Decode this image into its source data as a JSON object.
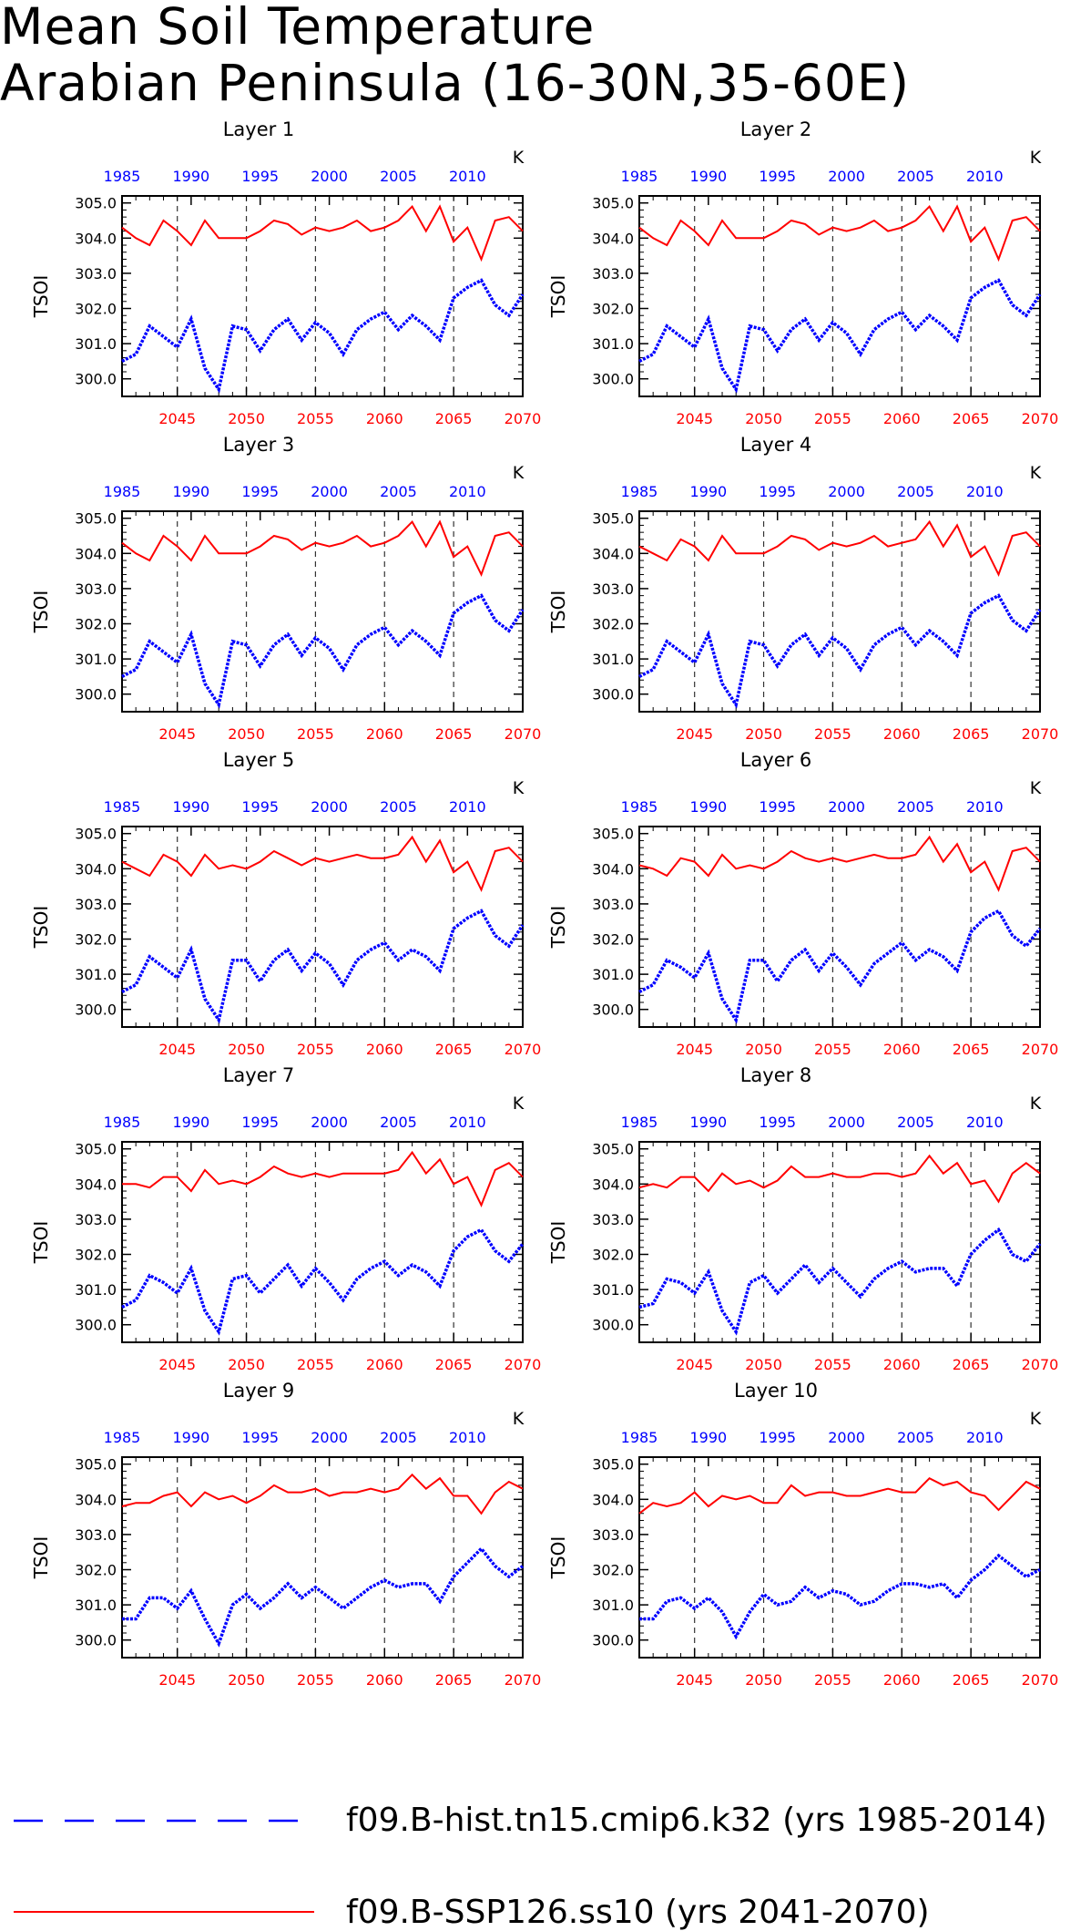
{
  "title_line1": "Mean Soil Temperature",
  "title_line2": "Arabian Peninsula (16-30N,35-60E)",
  "colors": {
    "hist": "#0000ff",
    "ssp": "#ff0000",
    "axis": "#000000"
  },
  "legend": {
    "hist_label": "f09.B-hist.tn15.cmip6.k32 (yrs 1985-2014)",
    "ssp_label": "f09.B-SSP126.ss10 (yrs 2041-2070)"
  },
  "chart_data": {
    "type": "line",
    "ylabel": "TSOI",
    "units": "K",
    "x_bottom": {
      "label_color": "red",
      "range": [
        2041,
        2070
      ],
      "ticks": [
        2045,
        2050,
        2055,
        2060,
        2065,
        2070
      ]
    },
    "x_top": {
      "label_color": "blue",
      "range": [
        1985,
        2014
      ],
      "ticks": [
        1985,
        1990,
        1995,
        2000,
        2005,
        2010
      ]
    },
    "ylim": [
      299.5,
      305.2
    ],
    "yticks": [
      "300.0",
      "301.0",
      "302.0",
      "303.0",
      "304.0",
      "305.0"
    ],
    "grid": "vertical dashed lines at bottom axis ticks",
    "legend_position": "bottom",
    "panels": [
      {
        "title": "Layer 1",
        "hist": [
          300.5,
          300.7,
          301.5,
          301.2,
          300.9,
          301.7,
          300.3,
          299.7,
          301.5,
          301.4,
          300.8,
          301.4,
          301.7,
          301.1,
          301.6,
          301.3,
          300.7,
          301.4,
          301.7,
          301.9,
          301.4,
          301.8,
          301.5,
          301.1,
          302.3,
          302.6,
          302.8,
          302.1,
          301.8,
          302.4
        ],
        "ssp": [
          304.3,
          304.0,
          303.8,
          304.5,
          304.2,
          303.8,
          304.5,
          304.0,
          304.0,
          304.0,
          304.2,
          304.5,
          304.4,
          304.1,
          304.3,
          304.2,
          304.3,
          304.5,
          304.2,
          304.3,
          304.5,
          304.9,
          304.2,
          304.9,
          303.9,
          304.3,
          303.4,
          304.5,
          304.6,
          304.2
        ]
      },
      {
        "title": "Layer 2",
        "hist": [
          300.5,
          300.7,
          301.5,
          301.2,
          300.9,
          301.7,
          300.3,
          299.7,
          301.5,
          301.4,
          300.8,
          301.4,
          301.7,
          301.1,
          301.6,
          301.3,
          300.7,
          301.4,
          301.7,
          301.9,
          301.4,
          301.8,
          301.5,
          301.1,
          302.3,
          302.6,
          302.8,
          302.1,
          301.8,
          302.4
        ],
        "ssp": [
          304.3,
          304.0,
          303.8,
          304.5,
          304.2,
          303.8,
          304.5,
          304.0,
          304.0,
          304.0,
          304.2,
          304.5,
          304.4,
          304.1,
          304.3,
          304.2,
          304.3,
          304.5,
          304.2,
          304.3,
          304.5,
          304.9,
          304.2,
          304.9,
          303.9,
          304.3,
          303.4,
          304.5,
          304.6,
          304.2
        ]
      },
      {
        "title": "Layer 3",
        "hist": [
          300.5,
          300.7,
          301.5,
          301.2,
          300.9,
          301.7,
          300.3,
          299.7,
          301.5,
          301.4,
          300.8,
          301.4,
          301.7,
          301.1,
          301.6,
          301.3,
          300.7,
          301.4,
          301.7,
          301.9,
          301.4,
          301.8,
          301.5,
          301.1,
          302.3,
          302.6,
          302.8,
          302.1,
          301.8,
          302.4
        ],
        "ssp": [
          304.3,
          304.0,
          303.8,
          304.5,
          304.2,
          303.8,
          304.5,
          304.0,
          304.0,
          304.0,
          304.2,
          304.5,
          304.4,
          304.1,
          304.3,
          304.2,
          304.3,
          304.5,
          304.2,
          304.3,
          304.5,
          304.9,
          304.2,
          304.9,
          303.9,
          304.2,
          303.4,
          304.5,
          304.6,
          304.2
        ]
      },
      {
        "title": "Layer 4",
        "hist": [
          300.5,
          300.7,
          301.5,
          301.2,
          300.9,
          301.7,
          300.3,
          299.7,
          301.5,
          301.4,
          300.8,
          301.4,
          301.7,
          301.1,
          301.6,
          301.3,
          300.7,
          301.4,
          301.7,
          301.9,
          301.4,
          301.8,
          301.5,
          301.1,
          302.3,
          302.6,
          302.8,
          302.1,
          301.8,
          302.4
        ],
        "ssp": [
          304.2,
          304.0,
          303.8,
          304.4,
          304.2,
          303.8,
          304.5,
          304.0,
          304.0,
          304.0,
          304.2,
          304.5,
          304.4,
          304.1,
          304.3,
          304.2,
          304.3,
          304.5,
          304.2,
          304.3,
          304.4,
          304.9,
          304.2,
          304.8,
          303.9,
          304.2,
          303.4,
          304.5,
          304.6,
          304.2
        ]
      },
      {
        "title": "Layer 5",
        "hist": [
          300.5,
          300.7,
          301.5,
          301.2,
          300.9,
          301.7,
          300.3,
          299.7,
          301.4,
          301.4,
          300.8,
          301.4,
          301.7,
          301.1,
          301.6,
          301.3,
          300.7,
          301.4,
          301.7,
          301.9,
          301.4,
          301.7,
          301.5,
          301.1,
          302.3,
          302.6,
          302.8,
          302.1,
          301.8,
          302.4
        ],
        "ssp": [
          304.2,
          304.0,
          303.8,
          304.4,
          304.2,
          303.8,
          304.4,
          304.0,
          304.1,
          304.0,
          304.2,
          304.5,
          304.3,
          304.1,
          304.3,
          304.2,
          304.3,
          304.4,
          304.3,
          304.3,
          304.4,
          304.9,
          304.2,
          304.8,
          303.9,
          304.2,
          303.4,
          304.5,
          304.6,
          304.2
        ]
      },
      {
        "title": "Layer 6",
        "hist": [
          300.5,
          300.7,
          301.4,
          301.2,
          300.9,
          301.6,
          300.3,
          299.7,
          301.4,
          301.4,
          300.8,
          301.4,
          301.7,
          301.1,
          301.6,
          301.2,
          300.7,
          301.3,
          301.6,
          301.9,
          301.4,
          301.7,
          301.5,
          301.1,
          302.2,
          302.6,
          302.8,
          302.1,
          301.8,
          302.3
        ],
        "ssp": [
          304.1,
          304.0,
          303.8,
          304.3,
          304.2,
          303.8,
          304.4,
          304.0,
          304.1,
          304.0,
          304.2,
          304.5,
          304.3,
          304.2,
          304.3,
          304.2,
          304.3,
          304.4,
          304.3,
          304.3,
          304.4,
          304.9,
          304.2,
          304.7,
          303.9,
          304.2,
          303.4,
          304.5,
          304.6,
          304.2
        ]
      },
      {
        "title": "Layer 7",
        "hist": [
          300.5,
          300.7,
          301.4,
          301.2,
          300.9,
          301.6,
          300.4,
          299.8,
          301.3,
          301.4,
          300.9,
          301.3,
          301.7,
          301.1,
          301.6,
          301.2,
          300.7,
          301.3,
          301.6,
          301.8,
          301.4,
          301.7,
          301.5,
          301.1,
          302.1,
          302.5,
          302.7,
          302.1,
          301.8,
          302.3
        ],
        "ssp": [
          304.0,
          304.0,
          303.9,
          304.2,
          304.2,
          303.8,
          304.4,
          304.0,
          304.1,
          304.0,
          304.2,
          304.5,
          304.3,
          304.2,
          304.3,
          304.2,
          304.3,
          304.3,
          304.3,
          304.3,
          304.4,
          304.9,
          304.3,
          304.7,
          304.0,
          304.2,
          303.4,
          304.4,
          304.6,
          304.2
        ]
      },
      {
        "title": "Layer 8",
        "hist": [
          300.5,
          300.6,
          301.3,
          301.2,
          300.9,
          301.5,
          300.4,
          299.8,
          301.2,
          301.4,
          300.9,
          301.3,
          301.7,
          301.2,
          301.6,
          301.2,
          300.8,
          301.3,
          301.6,
          301.8,
          301.5,
          301.6,
          301.6,
          301.1,
          302.0,
          302.4,
          302.7,
          302.0,
          301.8,
          302.3
        ],
        "ssp": [
          303.9,
          304.0,
          303.9,
          304.2,
          304.2,
          303.8,
          304.3,
          304.0,
          304.1,
          303.9,
          304.1,
          304.5,
          304.2,
          304.2,
          304.3,
          304.2,
          304.2,
          304.3,
          304.3,
          304.2,
          304.3,
          304.8,
          304.3,
          304.6,
          304.0,
          304.1,
          303.5,
          304.3,
          304.6,
          304.3
        ]
      },
      {
        "title": "Layer 9",
        "hist": [
          300.6,
          300.6,
          301.2,
          301.2,
          300.9,
          301.4,
          300.6,
          299.9,
          301.0,
          301.3,
          300.9,
          301.2,
          301.6,
          301.2,
          301.5,
          301.2,
          300.9,
          301.2,
          301.5,
          301.7,
          301.5,
          301.6,
          301.6,
          301.1,
          301.8,
          302.2,
          302.6,
          302.1,
          301.8,
          302.1
        ],
        "ssp": [
          303.8,
          303.9,
          303.9,
          304.1,
          304.2,
          303.8,
          304.2,
          304.0,
          304.1,
          303.9,
          304.1,
          304.4,
          304.2,
          304.2,
          304.3,
          304.1,
          304.2,
          304.2,
          304.3,
          304.2,
          304.3,
          304.7,
          304.3,
          304.6,
          304.1,
          304.1,
          303.6,
          304.2,
          304.5,
          304.3
        ]
      },
      {
        "title": "Layer 10",
        "hist": [
          300.6,
          300.6,
          301.1,
          301.2,
          300.9,
          301.2,
          300.8,
          300.1,
          300.8,
          301.3,
          301.0,
          301.1,
          301.5,
          301.2,
          301.4,
          301.3,
          301.0,
          301.1,
          301.4,
          301.6,
          301.6,
          301.5,
          301.6,
          301.2,
          301.7,
          302.0,
          302.4,
          302.1,
          301.8,
          302.0
        ],
        "ssp": [
          303.6,
          303.9,
          303.8,
          303.9,
          304.2,
          303.8,
          304.1,
          304.0,
          304.1,
          303.9,
          303.9,
          304.4,
          304.1,
          304.2,
          304.2,
          304.1,
          304.1,
          304.2,
          304.3,
          304.2,
          304.2,
          304.6,
          304.4,
          304.5,
          304.2,
          304.1,
          303.7,
          304.1,
          304.5,
          304.3
        ]
      }
    ]
  }
}
